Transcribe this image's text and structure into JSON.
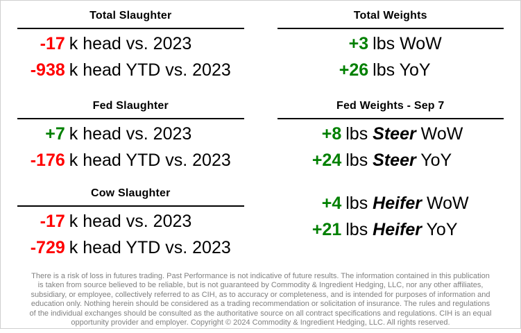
{
  "page": {
    "background": "#ffffff",
    "frame_border_color": "#cfcfcf"
  },
  "colors": {
    "positive": "#008000",
    "negative": "#ff0000",
    "heading": "#000000",
    "body_text": "#000000",
    "rule": "#000000",
    "disclaimer_text": "#808080"
  },
  "columns": {
    "left": {
      "sections": [
        {
          "title": "Total Slaughter",
          "rows": [
            {
              "value": "-17",
              "tone": "negative",
              "label": "k head vs. 2023"
            },
            {
              "value": "-938",
              "tone": "negative",
              "label": "k head YTD vs. 2023"
            }
          ]
        },
        {
          "title": "Fed Slaughter",
          "rows": [
            {
              "value": "+7",
              "tone": "positive",
              "label": "k head vs. 2023"
            },
            {
              "value": "-176",
              "tone": "negative",
              "label": "k head YTD vs. 2023"
            }
          ]
        },
        {
          "title": "Cow Slaughter",
          "rows": [
            {
              "value": "-17",
              "tone": "negative",
              "label": "k head vs. 2023"
            },
            {
              "value": "-729",
              "tone": "negative",
              "label": "k head YTD vs. 2023"
            }
          ]
        }
      ]
    },
    "right": {
      "sections": [
        {
          "title": "Total Weights",
          "rows": [
            {
              "value": "+3",
              "tone": "positive",
              "unit": "lbs",
              "period": "WoW"
            },
            {
              "value": "+26",
              "tone": "positive",
              "unit": "lbs",
              "period": "YoY"
            }
          ]
        },
        {
          "title": "Fed Weights - Sep 7",
          "rows": [
            {
              "value": "+8",
              "tone": "positive",
              "unit": "lbs",
              "animal": "Steer",
              "period": "WoW"
            },
            {
              "value": "+24",
              "tone": "positive",
              "unit": "lbs",
              "animal": "Steer",
              "period": "YoY"
            },
            {
              "value": "+4",
              "tone": "positive",
              "unit": "lbs",
              "animal": "Heifer",
              "period": "WoW"
            },
            {
              "value": "+21",
              "tone": "positive",
              "unit": "lbs",
              "animal": "Heifer",
              "period": "YoY"
            }
          ]
        }
      ]
    }
  },
  "disclaimer": {
    "lines": [
      "There is a risk of loss in futures trading. Past Performance is not indicative of future results. The information contained in this publication",
      "is taken from source believed to be reliable, but is not guaranteed by Commodity & Ingredient Hedging, LLC, nor any other affiliates,",
      "subsidiary, or employee, collectively referred to as CIH, as to accuracy or completeness, and is intended for purposes of information and",
      "education only. Nothing herein should be considered as a trading recommendation or solicitation of insurance. The rules and regulations",
      "of the individual exchanges should be consulted as the authoritative source on all contract specifications and regulations. CIH is an equal",
      "opportunity provider and employer. Copyright © 2024 Commodity & Ingredient Hedging, LLC. All rights reserved."
    ]
  }
}
